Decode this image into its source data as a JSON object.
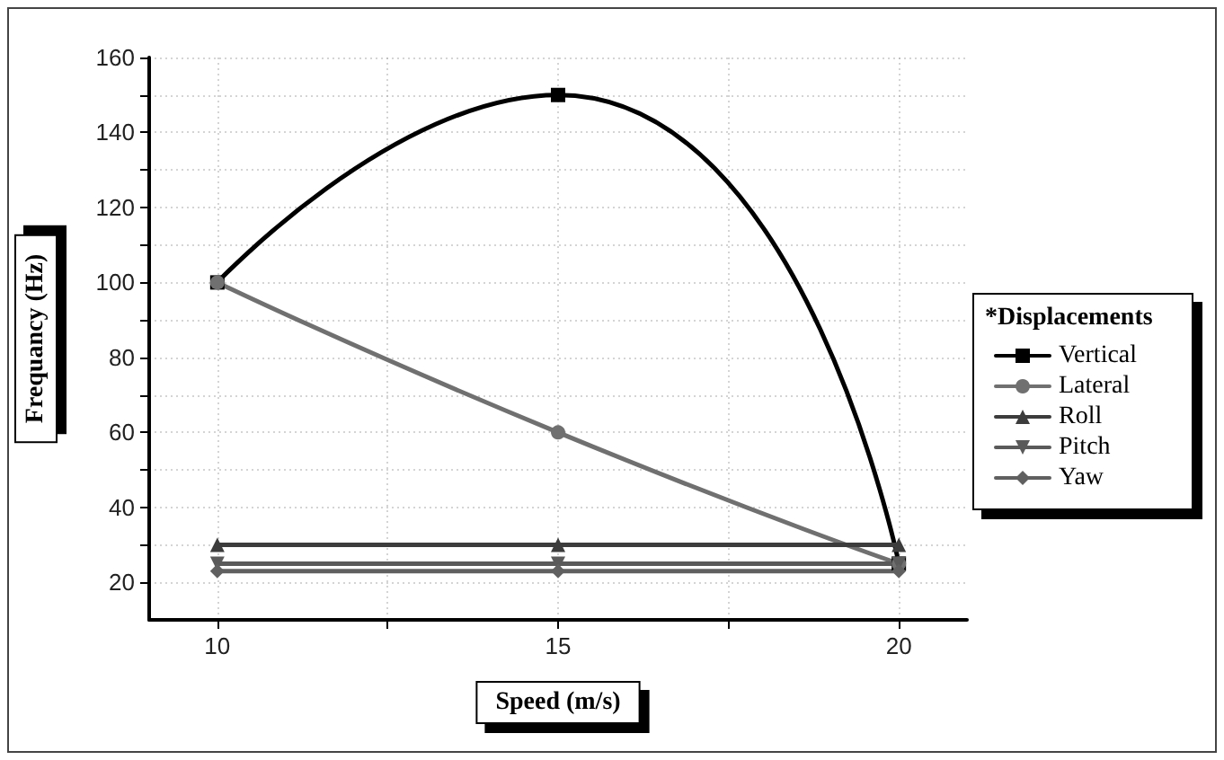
{
  "chart_data": {
    "type": "line",
    "xlabel": "Speed (m/s)",
    "ylabel": "Frequancy (Hz)",
    "legend_title": "*Displacements",
    "x": [
      10,
      15,
      20
    ],
    "series": [
      {
        "name": "Vertical",
        "color": "#000000",
        "marker": "square",
        "values": [
          100,
          150,
          25
        ]
      },
      {
        "name": "Lateral",
        "color": "#707070",
        "marker": "circle",
        "values": [
          100,
          60,
          25
        ]
      },
      {
        "name": "Roll",
        "color": "#3c3c3c",
        "marker": "triangle",
        "values": [
          30,
          30,
          30
        ]
      },
      {
        "name": "Pitch",
        "color": "#5a5a5a",
        "marker": "triangle-down",
        "values": [
          25,
          25,
          25
        ]
      },
      {
        "name": "Yaw",
        "color": "#606060",
        "marker": "diamond",
        "values": [
          23,
          23,
          23
        ]
      }
    ],
    "xlim": [
      9,
      21
    ],
    "xticks": [
      10,
      {
        "value": 12.5,
        "label": null
      },
      15,
      {
        "value": 17.5,
        "label": null
      },
      20
    ],
    "ylim": [
      10,
      160
    ],
    "yticks": [
      20,
      {
        "value": 30,
        "label": null
      },
      40,
      {
        "value": 50,
        "label": null
      },
      60,
      {
        "value": 70,
        "label": null
      },
      80,
      {
        "value": 90,
        "label": null
      },
      100,
      {
        "value": 110,
        "label": null
      },
      120,
      {
        "value": 130,
        "label": null
      },
      140,
      {
        "value": 150,
        "label": null
      },
      160
    ],
    "grid": true,
    "legend": "right",
    "line_style": "solid"
  }
}
